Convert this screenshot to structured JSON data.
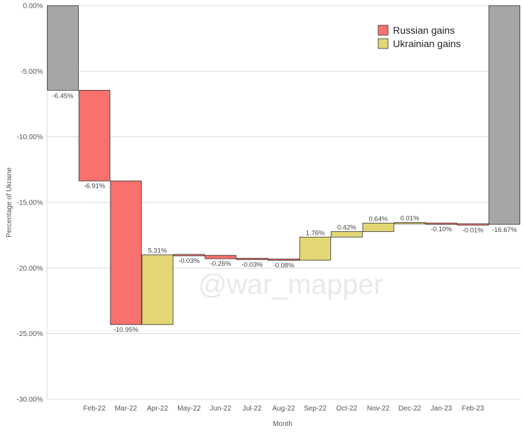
{
  "chart_data": {
    "type": "waterfall",
    "xlabel": "Month",
    "ylabel": "Percentage of Ukraine",
    "ylim": [
      -30,
      0
    ],
    "yticks": [
      0,
      -5,
      -10,
      -15,
      -20,
      -25,
      -30
    ],
    "ytick_labels": [
      "0.00%",
      "-5.00%",
      "-10.00%",
      "-15.00%",
      "-20.00%",
      "-25.00%",
      "-30.00%"
    ],
    "grid": true,
    "legend_position": "top-right",
    "legend": [
      {
        "label": "Russian gains",
        "color": "#f8716c"
      },
      {
        "label": "Ukrainian gains",
        "color": "#e2d774"
      }
    ],
    "total_color": "#a6a6a6",
    "watermark": "@war_mapper",
    "bars": [
      {
        "category": "",
        "kind": "total",
        "value": -6.45,
        "label": "-6.45%"
      },
      {
        "category": "Feb-22",
        "kind": "russian",
        "value": -6.91,
        "label": "-6.91%"
      },
      {
        "category": "Mar-22",
        "kind": "russian",
        "value": -10.95,
        "label": "-10.95%"
      },
      {
        "category": "Apr-22",
        "kind": "ukrainian",
        "value": 5.31,
        "label": "5.31%"
      },
      {
        "category": "May-22",
        "kind": "russian",
        "value": -0.03,
        "label": "-0.03%"
      },
      {
        "category": "Jun-22",
        "kind": "russian",
        "value": -0.26,
        "label": "-0.26%"
      },
      {
        "category": "Jul-22",
        "kind": "russian",
        "value": -0.03,
        "label": "-0.03%"
      },
      {
        "category": "Aug-22",
        "kind": "russian",
        "value": -0.08,
        "label": "-0.08%"
      },
      {
        "category": "Sep-22",
        "kind": "ukrainian",
        "value": 1.76,
        "label": "1.76%"
      },
      {
        "category": "Oct-22",
        "kind": "ukrainian",
        "value": 0.42,
        "label": "0.42%"
      },
      {
        "category": "Nov-22",
        "kind": "ukrainian",
        "value": 0.64,
        "label": "0.64%"
      },
      {
        "category": "Dec-22",
        "kind": "ukrainian",
        "value": 0.01,
        "label": "0.01%"
      },
      {
        "category": "Jan-23",
        "kind": "russian",
        "value": -0.1,
        "label": "-0.10%"
      },
      {
        "category": "Feb-23",
        "kind": "russian",
        "value": -0.01,
        "label": "-0.01%"
      },
      {
        "category": "",
        "kind": "total",
        "value": -16.67,
        "label": "-16.67%"
      }
    ]
  }
}
